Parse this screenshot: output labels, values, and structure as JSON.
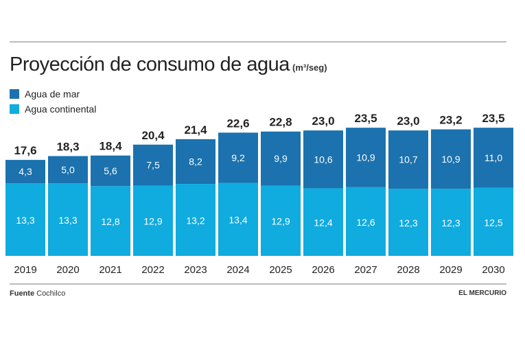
{
  "chart_data": {
    "type": "bar",
    "stacked": true,
    "title": "Proyección de consumo de agua",
    "unit": "(m³/seg)",
    "categories": [
      "2019",
      "2020",
      "2021",
      "2022",
      "2023",
      "2024",
      "2025",
      "2026",
      "2027",
      "2028",
      "2029",
      "2030"
    ],
    "series": [
      {
        "name": "Agua continental",
        "color": "#10abdf",
        "values": [
          13.3,
          13.3,
          12.8,
          12.9,
          13.2,
          13.4,
          12.9,
          12.4,
          12.6,
          12.3,
          12.3,
          12.5
        ]
      },
      {
        "name": "Agua de mar",
        "color": "#1b72ae",
        "values": [
          4.3,
          5.0,
          5.6,
          7.5,
          8.2,
          9.2,
          9.9,
          10.6,
          10.9,
          10.7,
          10.9,
          11.0
        ]
      }
    ],
    "totals": [
      17.6,
      18.3,
      18.4,
      20.4,
      21.4,
      22.6,
      22.8,
      23.0,
      23.5,
      23.0,
      23.2,
      23.5
    ],
    "legend_position": "top-left",
    "grid": false,
    "decimal_separator": ","
  },
  "footer": {
    "source_label": "Fuente",
    "source": "Cochilco",
    "brand": "EL MERCURIO"
  }
}
